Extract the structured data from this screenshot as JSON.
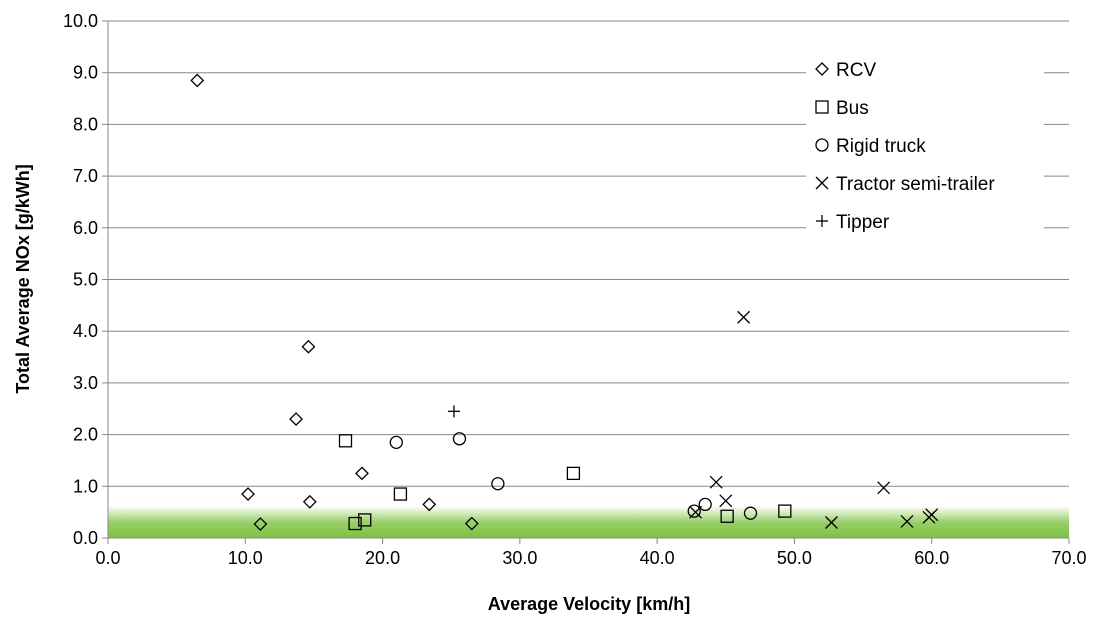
{
  "chart_data": {
    "type": "scatter",
    "title": "",
    "xlabel": "Average Velocity [km/h]",
    "ylabel": "Total Average NOx [g/kWh]",
    "xlim": [
      0,
      70
    ],
    "ylim": [
      0,
      10
    ],
    "x_ticks": [
      "0.0",
      "10.0",
      "20.0",
      "30.0",
      "40.0",
      "50.0",
      "60.0",
      "70.0"
    ],
    "y_ticks": [
      "0.0",
      "1.0",
      "2.0",
      "3.0",
      "4.0",
      "5.0",
      "6.0",
      "7.0",
      "8.0",
      "9.0",
      "10.0"
    ],
    "grid": "horizontal",
    "legend_position": "top-right",
    "highlight_band": {
      "from": 0,
      "to": 0.6,
      "color": "#7dc242"
    },
    "series": [
      {
        "name": "RCV",
        "marker": "diamond",
        "points": [
          {
            "x": 6.5,
            "y": 8.85
          },
          {
            "x": 14.6,
            "y": 3.7
          },
          {
            "x": 13.7,
            "y": 2.3
          },
          {
            "x": 18.5,
            "y": 1.25
          },
          {
            "x": 10.2,
            "y": 0.85
          },
          {
            "x": 14.7,
            "y": 0.7
          },
          {
            "x": 23.4,
            "y": 0.65
          },
          {
            "x": 11.1,
            "y": 0.27
          },
          {
            "x": 26.5,
            "y": 0.28
          }
        ]
      },
      {
        "name": "Bus",
        "marker": "square",
        "points": [
          {
            "x": 17.3,
            "y": 1.88
          },
          {
            "x": 21.3,
            "y": 0.85
          },
          {
            "x": 33.9,
            "y": 1.25
          },
          {
            "x": 18.0,
            "y": 0.28
          },
          {
            "x": 18.7,
            "y": 0.35
          },
          {
            "x": 45.1,
            "y": 0.42
          },
          {
            "x": 49.3,
            "y": 0.52
          }
        ]
      },
      {
        "name": "Rigid truck",
        "marker": "circle",
        "points": [
          {
            "x": 21.0,
            "y": 1.85
          },
          {
            "x": 25.6,
            "y": 1.92
          },
          {
            "x": 28.4,
            "y": 1.05
          },
          {
            "x": 42.7,
            "y": 0.52
          },
          {
            "x": 43.5,
            "y": 0.65
          },
          {
            "x": 46.8,
            "y": 0.48
          }
        ]
      },
      {
        "name": "Tractor semi-trailer",
        "marker": "cross",
        "points": [
          {
            "x": 46.3,
            "y": 4.27
          },
          {
            "x": 44.3,
            "y": 1.08
          },
          {
            "x": 45.0,
            "y": 0.72
          },
          {
            "x": 42.8,
            "y": 0.5
          },
          {
            "x": 56.5,
            "y": 0.97
          },
          {
            "x": 52.7,
            "y": 0.3
          },
          {
            "x": 58.2,
            "y": 0.32
          },
          {
            "x": 60.0,
            "y": 0.45
          },
          {
            "x": 59.8,
            "y": 0.4
          }
        ]
      },
      {
        "name": "Tipper",
        "marker": "plus",
        "points": [
          {
            "x": 25.2,
            "y": 2.45
          }
        ]
      }
    ]
  }
}
